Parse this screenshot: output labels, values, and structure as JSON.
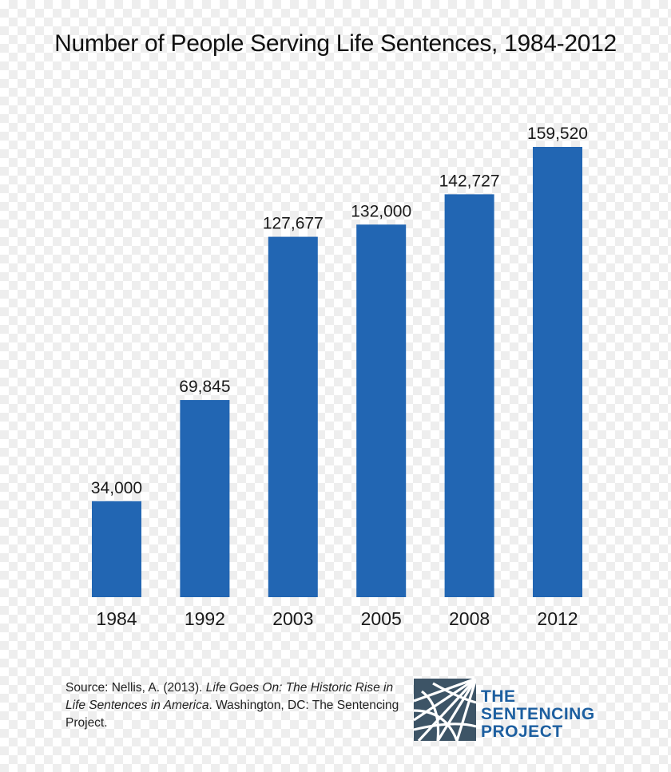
{
  "chart_data": {
    "type": "bar",
    "title": "Number of People Serving Life Sentences, 1984-2012",
    "categories": [
      "1984",
      "1992",
      "2003",
      "2005",
      "2008",
      "2012"
    ],
    "values": [
      34000,
      69845,
      127677,
      132000,
      142727,
      159520
    ],
    "value_labels": [
      "34,000",
      "69,845",
      "127,677",
      "132,000",
      "142,727",
      "159,520"
    ],
    "xlabel": "",
    "ylabel": "",
    "ylim": [
      0,
      160000
    ],
    "grid": false,
    "bar_color": "#2266b3"
  },
  "source": {
    "prefix": "Source: Nellis, A. (2013). ",
    "title": "Life Goes On: The Historic Rise in Life Sentences in America",
    "suffix": ". Washington, DC: The Sentencing Project."
  },
  "logo": {
    "line1": "THE",
    "line2": "SENTENCING",
    "line3": "PROJECT",
    "color": "#1d5fa0",
    "mark_color": "#3d5466"
  }
}
